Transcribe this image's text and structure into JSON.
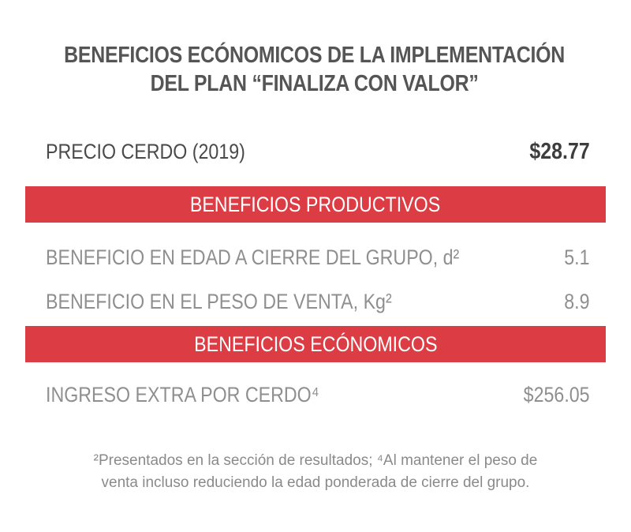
{
  "title": {
    "line1": "BENEFICIOS ECÓNOMICOS DE LA IMPLEMENTACIÓN",
    "line2": "DEL PLAN “FINALIZA CON VALOR”"
  },
  "price": {
    "label": "PRECIO CERDO (2019)",
    "value": "$28.77"
  },
  "section_productive": {
    "heading": "BENEFICIOS PRODUCTIVOS",
    "rows": [
      {
        "label": "BENEFICIO EN EDAD A CIERRE DEL GRUPO, d²",
        "value": "5.1"
      },
      {
        "label": "BENEFICIO EN EL PESO DE VENTA, Kg²",
        "value": "8.9"
      }
    ]
  },
  "section_economic": {
    "heading": "BENEFICIOS ECÓNOMICOS",
    "rows": [
      {
        "label": "INGRESO EXTRA POR CERDO⁴",
        "value": "$256.05"
      }
    ]
  },
  "footnote": {
    "line1": "²Presentados en la sección de resultados; ⁴Al mantener el peso de",
    "line2": "venta incluso reduciendo la edad ponderada de cierre del grupo."
  },
  "colors": {
    "band": "#dc3d45",
    "title": "#555555",
    "muted_text": "#8f8f8f"
  }
}
